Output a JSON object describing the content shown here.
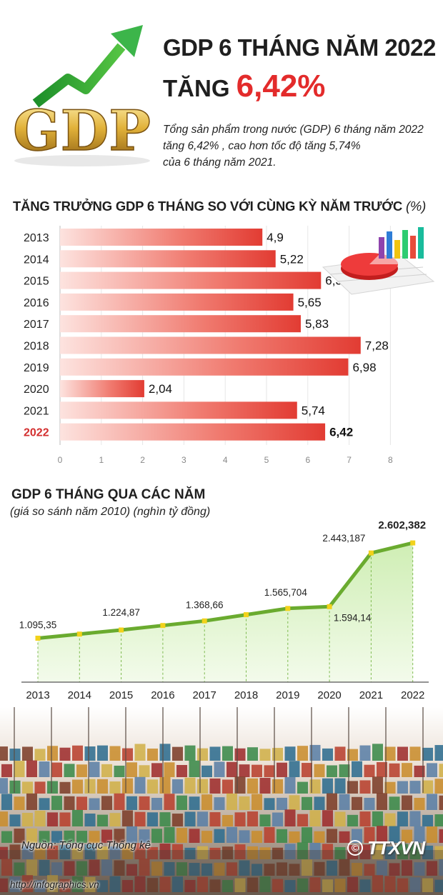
{
  "header": {
    "logo_text": "GDP",
    "headline_line1": "GDP 6 THÁNG NĂM 2022",
    "headline_prefix": "TĂNG",
    "headline_value": "6,42%",
    "summary_line1": "Tổng sản phẩm trong nước (GDP) 6 tháng năm 2022",
    "summary_line2": "tăng 6,42% , cao hơn tốc độ tăng 5,74%",
    "summary_line3": "của 6 tháng năm 2021.",
    "accent_color": "#e32b2b"
  },
  "bar_section": {
    "title": "TĂNG TRƯỞNG GDP 6 THÁNG SO VỚI CÙNG KỲ NĂM TRƯỚC",
    "title_unit": "(%)"
  },
  "line_section": {
    "title": "GDP 6 THÁNG QUA CÁC NĂM",
    "subtitle": "(giá so sánh năm 2010) (nghìn tỷ đồng)"
  },
  "chart_data": [
    {
      "type": "bar",
      "orientation": "horizontal",
      "title": "TĂNG TRƯỞNG GDP 6 THÁNG SO VỚI CÙNG KỲ NĂM TRƯỚC",
      "unit": "(%)",
      "categories": [
        "2013",
        "2014",
        "2015",
        "2016",
        "2017",
        "2018",
        "2019",
        "2020",
        "2021",
        "2022"
      ],
      "values": [
        4.9,
        5.22,
        6.32,
        5.65,
        5.83,
        7.28,
        6.98,
        2.04,
        5.74,
        6.42
      ],
      "value_labels": [
        "4,9",
        "5,22",
        "6,32",
        "5,65",
        "5,83",
        "7,28",
        "6,98",
        "2,04",
        "5,74",
        "6,42"
      ],
      "highlight_category": "2022",
      "xlim": [
        0,
        8
      ],
      "xticks": [
        "0",
        "1",
        "2",
        "3",
        "4",
        "5",
        "6",
        "7",
        "8"
      ],
      "bar_color": "#e8423a",
      "highlight_color": "#d32f2f"
    },
    {
      "type": "line",
      "title": "GDP 6 THÁNG QUA CÁC NĂM",
      "subtitle": "(giá so sánh năm 2010) (nghìn tỷ đồng)",
      "x": [
        "2013",
        "2014",
        "2015",
        "2016",
        "2017",
        "2018",
        "2019",
        "2020",
        "2021",
        "2022"
      ],
      "values": [
        1095.35,
        1160,
        1224.87,
        1296,
        1368.66,
        1467,
        1565.704,
        1594.14,
        2443.187,
        2602.382
      ],
      "labels": [
        {
          "x": "2013",
          "text": "1.095,35"
        },
        {
          "x": "2015",
          "text": "1.224,87"
        },
        {
          "x": "2017",
          "text": "1.368,66"
        },
        {
          "x": "2019",
          "text": "1.565,704"
        },
        {
          "x": "2020",
          "text": "1.594,14"
        },
        {
          "x": "2021",
          "text": "2.443,187"
        },
        {
          "x": "2022",
          "text": "2.602,382"
        }
      ],
      "line_color": "#6aab2f",
      "marker_color": "#f2d21b",
      "fill_color": "#dcf2c9"
    }
  ],
  "footer": {
    "source": "Nguồn: Tổng cục Thống kê",
    "site": "http://infographics.vn",
    "agency": "TTXVN",
    "copyright": "©"
  }
}
